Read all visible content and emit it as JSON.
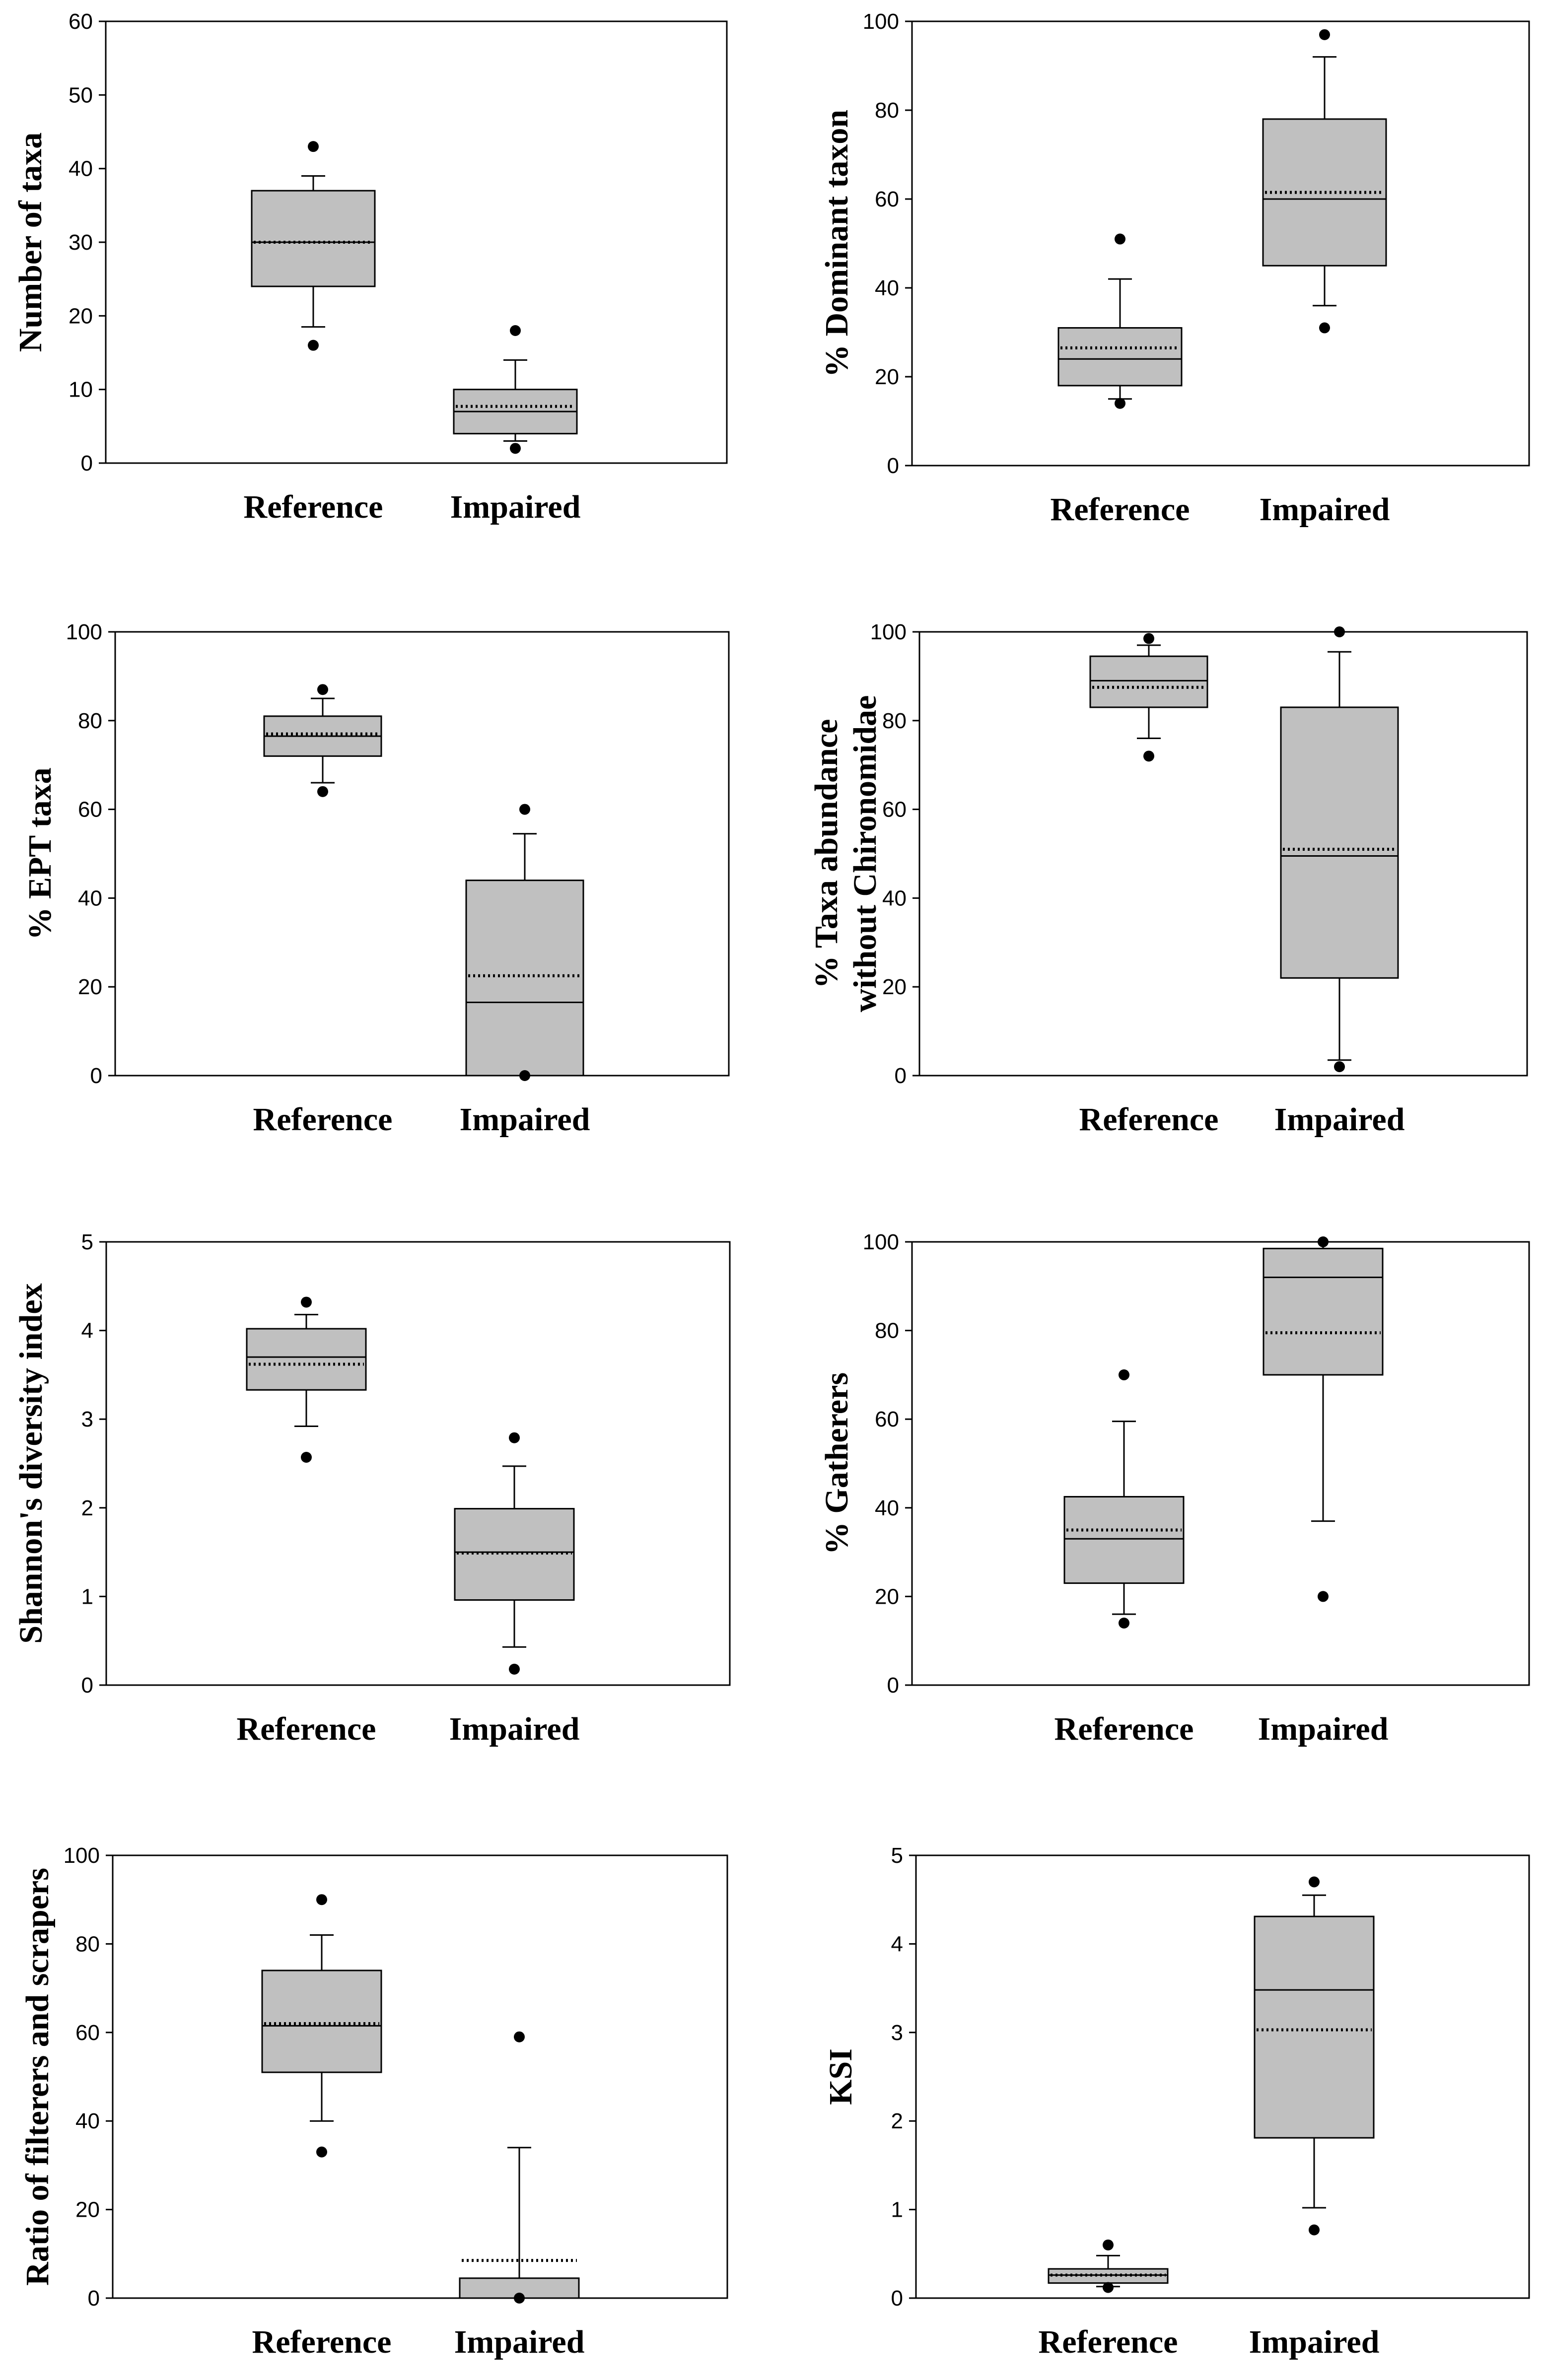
{
  "chart_data": [
    {
      "type": "box",
      "ylabel": [
        "Number of taxa"
      ],
      "ylim": [
        0,
        60
      ],
      "yticks": [
        0,
        10,
        20,
        30,
        40,
        50,
        60
      ],
      "categories": [
        "Reference",
        "Impaired"
      ],
      "boxes": [
        {
          "q1": 24,
          "median": 30,
          "q3": 37,
          "mean": 30,
          "whisker_low": 18.5,
          "whisker_high": 39,
          "outliers": [
            16,
            43
          ]
        },
        {
          "q1": 4,
          "median": 7,
          "q3": 10,
          "mean": 7.7,
          "whisker_low": 3,
          "whisker_high": 14,
          "outliers": [
            2,
            18
          ]
        }
      ]
    },
    {
      "type": "box",
      "ylabel": [
        "% Dominant taxon"
      ],
      "ylim": [
        0,
        100
      ],
      "yticks": [
        0,
        20,
        40,
        60,
        80,
        100
      ],
      "categories": [
        "Reference",
        "Impaired"
      ],
      "boxes": [
        {
          "q1": 18,
          "median": 24,
          "q3": 31,
          "mean": 26.5,
          "whisker_low": 15,
          "whisker_high": 42,
          "outliers": [
            14,
            51
          ]
        },
        {
          "q1": 45,
          "median": 60,
          "q3": 78,
          "mean": 61.5,
          "whisker_low": 36,
          "whisker_high": 92,
          "outliers": [
            31,
            97
          ]
        }
      ]
    },
    {
      "type": "box",
      "ylabel": [
        "% EPT taxa"
      ],
      "ylim": [
        0,
        100
      ],
      "yticks": [
        0,
        20,
        40,
        60,
        80,
        100
      ],
      "categories": [
        "Reference",
        "Impaired"
      ],
      "boxes": [
        {
          "q1": 72,
          "median": 76.5,
          "q3": 81,
          "mean": 77,
          "whisker_low": 66,
          "whisker_high": 85,
          "outliers": [
            64,
            87
          ]
        },
        {
          "q1": 0,
          "median": 16.5,
          "q3": 44,
          "mean": 22.5,
          "whisker_low": 0,
          "whisker_high": 54.5,
          "outliers": [
            0,
            60
          ]
        }
      ]
    },
    {
      "type": "box",
      "ylabel": [
        "% Taxa abundance",
        "without Chironomidae"
      ],
      "ylim": [
        0,
        100
      ],
      "yticks": [
        0,
        20,
        40,
        60,
        80,
        100
      ],
      "categories": [
        "Reference",
        "Impaired"
      ],
      "boxes": [
        {
          "q1": 83,
          "median": 89,
          "q3": 94.5,
          "mean": 87.5,
          "whisker_low": 76,
          "whisker_high": 97,
          "outliers": [
            72,
            98.5
          ]
        },
        {
          "q1": 22,
          "median": 49.5,
          "q3": 83,
          "mean": 51,
          "whisker_low": 3.5,
          "whisker_high": 95.5,
          "outliers": [
            2,
            100
          ]
        }
      ]
    },
    {
      "type": "box",
      "ylabel": [
        "Shannon's diversity index"
      ],
      "ylim": [
        0,
        5
      ],
      "yticks": [
        0,
        1,
        2,
        3,
        4,
        5
      ],
      "categories": [
        "Reference",
        "Impaired"
      ],
      "boxes": [
        {
          "q1": 3.33,
          "median": 3.7,
          "q3": 4.02,
          "mean": 3.62,
          "whisker_low": 2.92,
          "whisker_high": 4.18,
          "outliers": [
            2.57,
            4.32
          ]
        },
        {
          "q1": 0.96,
          "median": 1.5,
          "q3": 1.99,
          "mean": 1.49,
          "whisker_low": 0.43,
          "whisker_high": 2.47,
          "outliers": [
            0.18,
            2.79
          ]
        }
      ]
    },
    {
      "type": "box",
      "ylabel": [
        "% Gatherers"
      ],
      "ylim": [
        0,
        100
      ],
      "yticks": [
        0,
        20,
        40,
        60,
        80,
        100
      ],
      "categories": [
        "Reference",
        "Impaired"
      ],
      "boxes": [
        {
          "q1": 23,
          "median": 33,
          "q3": 42.5,
          "mean": 35,
          "whisker_low": 16,
          "whisker_high": 59.5,
          "outliers": [
            14,
            70
          ]
        },
        {
          "q1": 70,
          "median": 92,
          "q3": 98.5,
          "mean": 79.5,
          "whisker_low": 37,
          "whisker_high": 100,
          "outliers": [
            20,
            100
          ]
        }
      ]
    },
    {
      "type": "box",
      "ylabel": [
        "Ratio of filterers and scrapers"
      ],
      "ylim": [
        0,
        100
      ],
      "yticks": [
        0,
        20,
        40,
        60,
        80,
        100
      ],
      "categories": [
        "Reference",
        "Impaired"
      ],
      "boxes": [
        {
          "q1": 51,
          "median": 61.5,
          "q3": 74,
          "mean": 62,
          "whisker_low": 40,
          "whisker_high": 82,
          "outliers": [
            33,
            90
          ]
        },
        {
          "q1": 0,
          "median": 0,
          "q3": 4.5,
          "mean": 8.5,
          "whisker_low": 0,
          "whisker_high": 34,
          "outliers": [
            0,
            59
          ]
        }
      ]
    },
    {
      "type": "box",
      "ylabel": [
        "KSI"
      ],
      "ylim": [
        0,
        5
      ],
      "yticks": [
        0,
        1,
        2,
        3,
        4,
        5
      ],
      "categories": [
        "Reference",
        "Impaired"
      ],
      "boxes": [
        {
          "q1": 0.17,
          "median": 0.26,
          "q3": 0.33,
          "mean": 0.26,
          "whisker_low": 0.13,
          "whisker_high": 0.48,
          "outliers": [
            0.12,
            0.6
          ]
        },
        {
          "q1": 1.81,
          "median": 3.48,
          "q3": 4.31,
          "mean": 3.03,
          "whisker_low": 1.02,
          "whisker_high": 4.55,
          "outliers": [
            0.77,
            4.7
          ]
        }
      ]
    }
  ]
}
